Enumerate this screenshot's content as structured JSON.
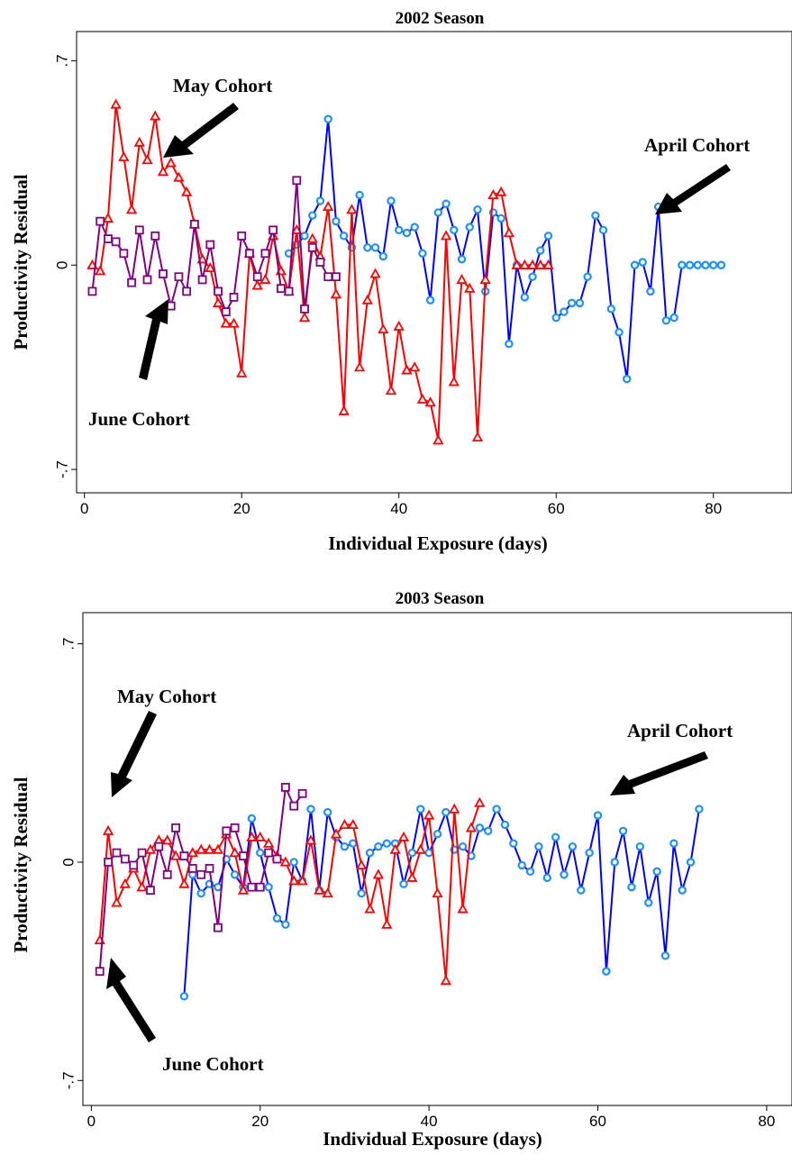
{
  "chart_data": [
    {
      "type": "line",
      "title": "2002 Season",
      "xlabel": "Individual Exposure (days)",
      "ylabel": "Productivity Residual",
      "xlim": [
        -1,
        90
      ],
      "ylim": [
        -0.78,
        0.8
      ],
      "xticks": [
        0,
        20,
        40,
        60,
        80
      ],
      "yticks": [
        -0.7,
        0,
        0.7
      ],
      "ytick_labels": [
        "-.7",
        "0",
        ".7"
      ],
      "grid": false,
      "annotations": [
        {
          "text": "May Cohort"
        },
        {
          "text": "April Cohort"
        },
        {
          "text": "June Cohort"
        }
      ],
      "series": [
        {
          "color": "#0000ff",
          "marker_color": "#1e90ff",
          "marker": "circle",
          "x": [
            26,
            27,
            28,
            29,
            30,
            31,
            32,
            33,
            34,
            35,
            36,
            37,
            38,
            39,
            40,
            41,
            42,
            43,
            44,
            45,
            46,
            47,
            48,
            49,
            50,
            51,
            52,
            53,
            54,
            55,
            56,
            57,
            58,
            59,
            60,
            61,
            62,
            63,
            64,
            65,
            66,
            67,
            68,
            69,
            70,
            71,
            72,
            73,
            74,
            75,
            76,
            77,
            78,
            79,
            80,
            81
          ],
          "y": [
            0.04,
            0.07,
            0.1,
            0.17,
            0.22,
            0.5,
            0.15,
            0.1,
            0.06,
            0.24,
            0.06,
            0.06,
            0.03,
            0.22,
            0.12,
            0.11,
            0.13,
            0.04,
            -0.12,
            0.18,
            0.21,
            0.12,
            0.02,
            0.13,
            0.19,
            -0.09,
            0.18,
            0.16,
            -0.27,
            0,
            -0.11,
            -0.04,
            0.05,
            0.1,
            -0.18,
            -0.16,
            -0.13,
            -0.13,
            -0.04,
            0.17,
            0.12,
            -0.15,
            -0.23,
            -0.39,
            0,
            0.01,
            -0.09,
            0.2,
            -0.19,
            -0.18,
            0,
            0,
            0,
            0,
            0,
            0
          ]
        },
        {
          "color": "#ff0000",
          "marker_color": "#ff0000",
          "marker": "triangle",
          "x": [
            1,
            2,
            3,
            4,
            5,
            6,
            7,
            8,
            9,
            10,
            11,
            12,
            13,
            14,
            15,
            16,
            17,
            18,
            19,
            20,
            21,
            22,
            23,
            24,
            25,
            26,
            27,
            28,
            29,
            30,
            31,
            32,
            33,
            34,
            35,
            36,
            37,
            38,
            39,
            40,
            41,
            42,
            43,
            44,
            45,
            46,
            47,
            48,
            49,
            50,
            51,
            52,
            53,
            54,
            55,
            56,
            57,
            58,
            59
          ],
          "y": [
            0,
            -0.02,
            0.16,
            0.55,
            0.37,
            0.19,
            0.42,
            0.36,
            0.51,
            0.32,
            0.35,
            0.3,
            0.25,
            0.14,
            0.02,
            -0.01,
            -0.13,
            -0.2,
            -0.2,
            -0.37,
            0.04,
            -0.07,
            -0.05,
            0.1,
            -0.02,
            -0.09,
            0.12,
            -0.18,
            0.09,
            0.03,
            0.2,
            -0.1,
            -0.5,
            0.19,
            -0.35,
            -0.12,
            -0.03,
            -0.22,
            -0.43,
            -0.21,
            -0.36,
            -0.35,
            -0.46,
            -0.47,
            -0.6,
            0.1,
            -0.4,
            -0.05,
            -0.08,
            -0.59,
            -0.05,
            0.24,
            0.25,
            0.11,
            0,
            0,
            0,
            0,
            0
          ]
        },
        {
          "color": "#800080",
          "marker_color": "#800080",
          "marker": "square",
          "x": [
            1,
            2,
            3,
            4,
            5,
            6,
            7,
            8,
            9,
            10,
            11,
            12,
            13,
            14,
            15,
            16,
            17,
            18,
            19,
            20,
            21,
            22,
            23,
            24,
            25,
            26,
            27,
            28,
            29,
            30,
            31,
            32
          ],
          "y": [
            -0.09,
            0.15,
            0.09,
            0.08,
            0.04,
            -0.06,
            0.12,
            -0.05,
            0.1,
            -0.03,
            -0.14,
            -0.04,
            -0.09,
            0.14,
            -0.05,
            0.07,
            -0.09,
            -0.16,
            -0.11,
            0.1,
            0.04,
            -0.04,
            0.04,
            0.12,
            -0.08,
            -0.09,
            0.29,
            -0.15,
            0.06,
            0.01,
            -0.04,
            -0.04
          ]
        }
      ]
    },
    {
      "type": "line",
      "title": "2003 Season",
      "xlabel": "Individual Exposure (days)",
      "ylabel": "Productivity Residual",
      "xlim": [
        -1,
        83
      ],
      "ylim": [
        -0.78,
        0.8
      ],
      "xticks": [
        0,
        20,
        40,
        60,
        80
      ],
      "yticks": [
        -0.7,
        0,
        0.7
      ],
      "ytick_labels": [
        "-.7",
        "0",
        ".7"
      ],
      "grid": false,
      "annotations": [
        {
          "text": "May Cohort"
        },
        {
          "text": "April Cohort"
        },
        {
          "text": "June Cohort"
        }
      ],
      "series": [
        {
          "color": "#0000ff",
          "marker_color": "#1e90ff",
          "marker": "circle",
          "x": [
            11,
            12,
            13,
            14,
            15,
            16,
            17,
            18,
            19,
            20,
            21,
            22,
            23,
            24,
            25,
            26,
            27,
            28,
            29,
            30,
            31,
            32,
            33,
            34,
            35,
            36,
            37,
            38,
            39,
            40,
            41,
            42,
            43,
            44,
            45,
            46,
            47,
            48,
            49,
            50,
            51,
            52,
            53,
            54,
            55,
            56,
            57,
            58,
            59,
            60,
            61,
            62,
            63,
            64,
            65,
            66,
            67,
            68,
            69,
            70,
            71,
            72
          ],
          "y": [
            -0.43,
            -0.04,
            -0.1,
            -0.07,
            -0.08,
            0.01,
            -0.04,
            -0.08,
            0.14,
            0.03,
            -0.08,
            -0.18,
            -0.2,
            0,
            -0.06,
            0.17,
            -0.09,
            0.16,
            0.08,
            0.05,
            0.06,
            -0.1,
            0.03,
            0.05,
            0.06,
            0.06,
            -0.07,
            0.03,
            0.17,
            0.03,
            0.09,
            0.16,
            0.04,
            0.05,
            0.02,
            0.11,
            0.1,
            0.17,
            0.12,
            0.06,
            -0.01,
            -0.03,
            0.05,
            -0.05,
            0.08,
            -0.04,
            0.05,
            -0.09,
            0.03,
            0.15,
            -0.35,
            0,
            0.1,
            -0.08,
            0.05,
            -0.13,
            -0.03,
            -0.3,
            0.06,
            -0.09,
            0,
            0.17
          ]
        },
        {
          "color": "#ff0000",
          "marker_color": "#ff0000",
          "marker": "triangle",
          "x": [
            1,
            2,
            3,
            4,
            5,
            6,
            7,
            8,
            9,
            10,
            11,
            12,
            13,
            14,
            15,
            16,
            17,
            18,
            19,
            20,
            21,
            22,
            23,
            24,
            25,
            26,
            27,
            28,
            29,
            30,
            31,
            32,
            33,
            34,
            35,
            36,
            37,
            38,
            39,
            40,
            41,
            42,
            43,
            44,
            45,
            46
          ],
          "y": [
            -0.25,
            0.1,
            -0.13,
            -0.07,
            -0.02,
            -0.08,
            0.04,
            0.07,
            0.07,
            0.02,
            -0.07,
            0.03,
            0.04,
            0.04,
            0.04,
            0.09,
            0.03,
            -0.09,
            0.08,
            0.08,
            0.06,
            0.02,
            0,
            -0.06,
            -0.06,
            0.07,
            -0.09,
            -0.1,
            0.09,
            0.12,
            0.12,
            -0.01,
            -0.15,
            -0.04,
            -0.2,
            0.04,
            0.08,
            -0.05,
            0.04,
            0.15,
            -0.1,
            -0.38,
            0.17,
            -0.15,
            0.11,
            0.19
          ]
        },
        {
          "color": "#800080",
          "marker_color": "#800080",
          "marker": "square",
          "x": [
            1,
            2,
            3,
            4,
            5,
            6,
            7,
            8,
            9,
            10,
            11,
            12,
            13,
            14,
            15,
            16,
            17,
            18,
            19,
            20,
            21,
            22,
            23,
            24,
            25
          ],
          "y": [
            -0.35,
            0,
            0.03,
            0.01,
            -0.01,
            0.03,
            -0.09,
            0.05,
            -0.04,
            0.11,
            0.02,
            -0.02,
            -0.04,
            -0.02,
            -0.21,
            0.1,
            0.11,
            0.02,
            -0.08,
            -0.08,
            0.03,
            0.01,
            0.24,
            0.18,
            0.22
          ]
        }
      ]
    }
  ]
}
